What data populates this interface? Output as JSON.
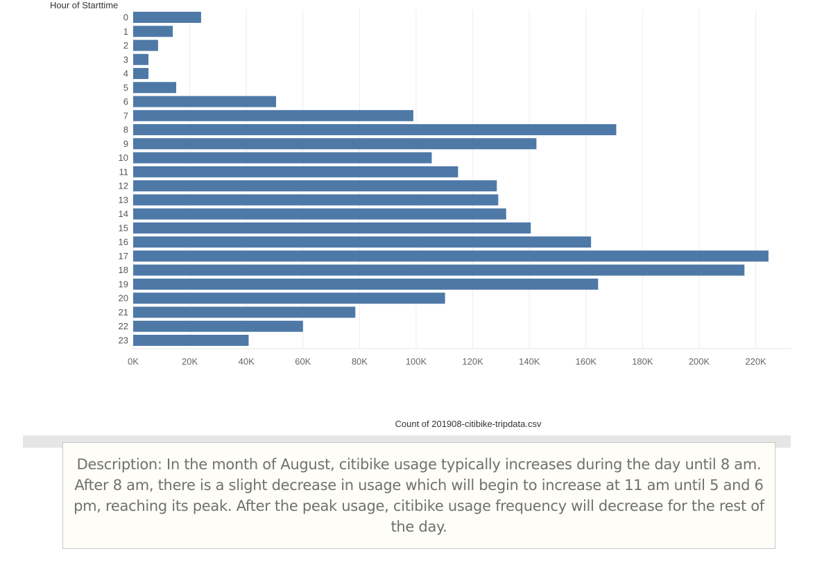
{
  "chart_data": {
    "type": "bar",
    "orientation": "horizontal",
    "ylabel": "Hour of Starttime",
    "xlabel": "Count of 201908-citibike-tripdata.csv",
    "categories": [
      "0",
      "1",
      "2",
      "3",
      "4",
      "5",
      "6",
      "7",
      "8",
      "9",
      "10",
      "11",
      "12",
      "13",
      "14",
      "15",
      "16",
      "17",
      "18",
      "19",
      "20",
      "21",
      "22",
      "23"
    ],
    "values": [
      24000,
      14000,
      8800,
      5400,
      5400,
      15200,
      50500,
      99000,
      170700,
      142500,
      105500,
      114800,
      128500,
      129000,
      131800,
      140500,
      161800,
      224500,
      216000,
      164300,
      110200,
      78500,
      60000,
      40800
    ],
    "xlim": [
      0,
      230000
    ],
    "xticks": [
      0,
      20000,
      40000,
      60000,
      80000,
      100000,
      120000,
      140000,
      160000,
      180000,
      200000,
      220000
    ],
    "xtick_labels": [
      "0K",
      "20K",
      "40K",
      "60K",
      "80K",
      "100K",
      "120K",
      "140K",
      "160K",
      "180K",
      "200K",
      "220K"
    ],
    "bar_color": "#4e79a7",
    "grid": "vertical"
  },
  "description": "Description: In the month of August, citibike usage typically increases during the day until 8 am. After 8 am, there is a slight decrease in usage which will begin to increase at 11 am until 5 and 6 pm, reaching its peak. After the peak usage, citibike usage frequency will decrease for the rest of the day."
}
